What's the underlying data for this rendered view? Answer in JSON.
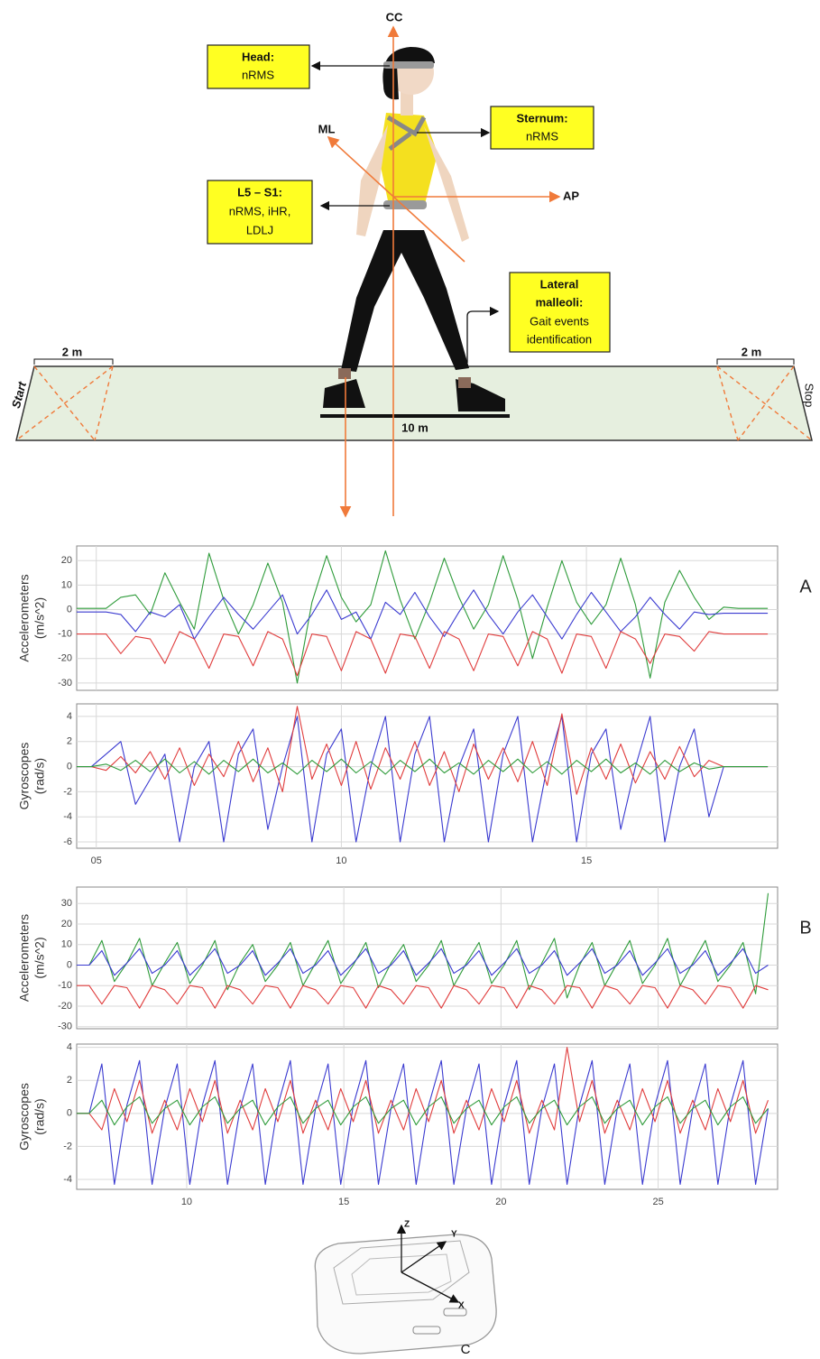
{
  "diagram": {
    "axes": {
      "cc": "CC",
      "ml": "ML",
      "ap": "AP"
    },
    "boxes": [
      {
        "title": [
          "Head:"
        ],
        "lines": [
          "nRMS"
        ]
      },
      {
        "title": [
          "Sternum:"
        ],
        "lines": [
          "nRMS"
        ]
      },
      {
        "title": [
          "L5 – S1:"
        ],
        "lines": [
          "nRMS, iHR,",
          "LDLJ"
        ]
      },
      {
        "title": [
          "Lateral",
          "malleoli:"
        ],
        "lines": [
          "Gait events",
          "identification"
        ]
      }
    ],
    "walkway": {
      "start": "Start",
      "stop": "Stop",
      "zone_left": "2 m",
      "zone_right": "2 m",
      "length": "10 m"
    },
    "device": {
      "z": "Z",
      "y": "Y",
      "x": "X",
      "label": "C"
    }
  },
  "chart_data": [
    {
      "type": "line",
      "panel": "A",
      "ylabel": [
        "Accelerometers",
        "(m/s^2)"
      ],
      "x": [
        4.6,
        4.9,
        5.2,
        5.5,
        5.8,
        6.1,
        6.4,
        6.7,
        7,
        7.3,
        7.6,
        7.9,
        8.2,
        8.5,
        8.8,
        9.1,
        9.4,
        9.7,
        10,
        10.3,
        10.6,
        10.9,
        11.2,
        11.5,
        11.8,
        12.1,
        12.4,
        12.7,
        13,
        13.3,
        13.6,
        13.9,
        14.2,
        14.5,
        14.8,
        15.1,
        15.4,
        15.7,
        16,
        16.3,
        16.6,
        16.9,
        17.2,
        17.5,
        17.8,
        18.1,
        18.4,
        18.7
      ],
      "xlim": [
        4.6,
        18.9
      ],
      "xticks": [
        5,
        10,
        15
      ],
      "x_tick_labels": false,
      "ylim": [
        -33,
        26
      ],
      "yticks": [
        -30,
        -20,
        -10,
        0,
        10,
        20
      ],
      "grid": true,
      "series": [
        {
          "color": "#2e9b3a",
          "values": [
            0.5,
            0.5,
            0.5,
            5,
            6,
            -2,
            15,
            3,
            -8,
            23,
            4,
            -10,
            2,
            19,
            3,
            -30,
            3,
            22,
            5,
            -5,
            2,
            24,
            4,
            -12,
            3,
            21,
            5,
            -8,
            2,
            22,
            4,
            -20,
            1,
            20,
            3,
            -6,
            2,
            21,
            2,
            -28,
            3,
            16,
            5,
            -4,
            1,
            0.5,
            0.5,
            0.5
          ]
        },
        {
          "color": "#3a3ad0",
          "values": [
            -1,
            -1,
            -1,
            -2,
            -9,
            -1,
            -3,
            2,
            -12,
            -3,
            5,
            -2,
            -8,
            -1,
            6,
            -10,
            -2,
            8,
            -4,
            -1,
            -12,
            3,
            -2,
            7,
            -3,
            -11,
            -1,
            8,
            -2,
            -10,
            -1,
            6,
            -3,
            -12,
            -2,
            7,
            -1,
            -9,
            -3,
            5,
            -2,
            -8,
            -1,
            -2,
            -1.5,
            -1.5,
            -1.5,
            -1.5
          ]
        },
        {
          "color": "#e03c3c",
          "values": [
            -10,
            -10,
            -10,
            -18,
            -11,
            -12,
            -22,
            -9,
            -12,
            -24,
            -10,
            -11,
            -23,
            -9,
            -12,
            -27,
            -10,
            -11,
            -25,
            -9,
            -12,
            -26,
            -10,
            -11,
            -24,
            -9,
            -12,
            -25,
            -10,
            -11,
            -23,
            -9,
            -12,
            -26,
            -10,
            -11,
            -24,
            -9,
            -12,
            -22,
            -10,
            -11,
            -17,
            -9,
            -10,
            -10,
            -10,
            -10
          ]
        }
      ]
    },
    {
      "type": "line",
      "ylabel": [
        "Gyroscopes",
        "(rad/s)"
      ],
      "x": [
        4.6,
        4.9,
        5.2,
        5.5,
        5.8,
        6.1,
        6.4,
        6.7,
        7,
        7.3,
        7.6,
        7.9,
        8.2,
        8.5,
        8.8,
        9.1,
        9.4,
        9.7,
        10,
        10.3,
        10.6,
        10.9,
        11.2,
        11.5,
        11.8,
        12.1,
        12.4,
        12.7,
        13,
        13.3,
        13.6,
        13.9,
        14.2,
        14.5,
        14.8,
        15.1,
        15.4,
        15.7,
        16,
        16.3,
        16.6,
        16.9,
        17.2,
        17.5,
        17.8,
        18.1,
        18.4,
        18.7
      ],
      "xlim": [
        4.6,
        18.9
      ],
      "xticks": [
        {
          "value": 5,
          "label": "05"
        },
        10,
        15
      ],
      "x_tick_labels": true,
      "ylim": [
        -6.5,
        5
      ],
      "yticks": [
        -6,
        -4,
        -2,
        0,
        2,
        4
      ],
      "grid": true,
      "series": [
        {
          "color": "#3a3ad0",
          "values": [
            0,
            0,
            1,
            2,
            -3,
            -1,
            1,
            -6,
            0,
            2,
            -6,
            1,
            3,
            -5,
            0,
            4,
            -6,
            1,
            3,
            -6,
            0,
            4,
            -6,
            1,
            4,
            -6,
            0,
            3,
            -6,
            1,
            4,
            -6,
            0,
            4,
            -6,
            1,
            3,
            -5,
            0,
            4,
            -6,
            0,
            3,
            -4,
            0,
            0,
            0,
            0
          ]
        },
        {
          "color": "#e03c3c",
          "values": [
            0,
            0,
            -0.3,
            0.8,
            -0.5,
            1.2,
            -1,
            1.5,
            -1.5,
            1,
            -0.8,
            2,
            -1.2,
            1.5,
            -2,
            4.8,
            -1,
            1.8,
            -1.5,
            2,
            -1.8,
            1.5,
            -1,
            2,
            -1.5,
            1.2,
            -2,
            1.8,
            -1,
            1.5,
            -1.2,
            2,
            -1.5,
            4.2,
            -2.2,
            1.5,
            -1,
            1.8,
            -1.3,
            1.2,
            -1,
            1.6,
            -0.8,
            0.5,
            0,
            0,
            0,
            0
          ]
        },
        {
          "color": "#2e9b3a",
          "values": [
            0,
            0,
            0.2,
            -0.3,
            0.5,
            -0.4,
            0.6,
            -0.5,
            0.4,
            -0.6,
            0.5,
            -0.4,
            0.6,
            -0.5,
            0.3,
            -0.6,
            0.5,
            -0.4,
            0.6,
            -0.5,
            0.4,
            -0.6,
            0.5,
            -0.4,
            0.6,
            -0.5,
            0.3,
            -0.6,
            0.5,
            -0.4,
            0.6,
            -0.5,
            0.4,
            -0.6,
            0.5,
            -0.4,
            0.6,
            -0.5,
            0.3,
            -0.6,
            0.5,
            -0.4,
            0.3,
            -0.2,
            0,
            0,
            0,
            0
          ]
        }
      ]
    },
    {
      "type": "line",
      "panel": "B",
      "ylabel": [
        "Accelerometers",
        "(m/s^2)"
      ],
      "x": [
        6.5,
        6.9,
        7.3,
        7.7,
        8.1,
        8.5,
        8.9,
        9.3,
        9.7,
        10.1,
        10.5,
        10.9,
        11.3,
        11.7,
        12.1,
        12.5,
        12.9,
        13.3,
        13.7,
        14.1,
        14.5,
        14.9,
        15.3,
        15.7,
        16.1,
        16.5,
        16.9,
        17.3,
        17.7,
        18.1,
        18.5,
        18.9,
        19.3,
        19.7,
        20.1,
        20.5,
        20.9,
        21.3,
        21.7,
        22.1,
        22.5,
        22.9,
        23.3,
        23.7,
        24.1,
        24.5,
        24.9,
        25.3,
        25.7,
        26.1,
        26.5,
        26.9,
        27.3,
        27.7,
        28.1,
        28.5
      ],
      "xlim": [
        6.5,
        28.8
      ],
      "xticks": [
        10,
        15,
        20,
        25
      ],
      "x_tick_labels": false,
      "ylim": [
        -31,
        38
      ],
      "yticks": [
        -30,
        -20,
        -10,
        0,
        10,
        20,
        30
      ],
      "grid": true,
      "series": [
        {
          "color": "#2e9b3a",
          "values": [
            0,
            0,
            12,
            -8,
            1,
            13,
            -10,
            1,
            11,
            -9,
            0,
            12,
            -12,
            1,
            10,
            -8,
            0,
            11,
            -10,
            1,
            12,
            -9,
            0,
            11,
            -11,
            1,
            10,
            -8,
            0,
            12,
            -10,
            1,
            11,
            -9,
            0,
            12,
            -12,
            1,
            13,
            -16,
            0,
            11,
            -10,
            1,
            12,
            -9,
            0,
            13,
            -10,
            1,
            12,
            -8,
            0,
            11,
            -14,
            35
          ]
        },
        {
          "color": "#3a3ad0",
          "values": [
            0,
            0,
            7,
            -5,
            1,
            8,
            -4,
            0,
            7,
            -5,
            1,
            8,
            -4,
            0,
            7,
            -5,
            1,
            8,
            -4,
            0,
            7,
            -5,
            1,
            8,
            -4,
            0,
            7,
            -5,
            1,
            8,
            -4,
            0,
            7,
            -5,
            1,
            8,
            -4,
            0,
            7,
            -5,
            1,
            8,
            -4,
            0,
            7,
            -5,
            1,
            8,
            -4,
            0,
            7,
            -5,
            1,
            8,
            -4,
            0
          ]
        },
        {
          "color": "#e03c3c",
          "values": [
            -10,
            -10,
            -19,
            -10,
            -11,
            -21,
            -10,
            -12,
            -19,
            -10,
            -11,
            -21,
            -10,
            -12,
            -19,
            -10,
            -11,
            -21,
            -10,
            -12,
            -19,
            -10,
            -11,
            -21,
            -10,
            -12,
            -19,
            -10,
            -11,
            -21,
            -10,
            -12,
            -19,
            -10,
            -11,
            -21,
            -10,
            -12,
            -19,
            -10,
            -11,
            -21,
            -10,
            -12,
            -19,
            -10,
            -11,
            -21,
            -10,
            -12,
            -19,
            -10,
            -11,
            -21,
            -10,
            -12
          ]
        }
      ]
    },
    {
      "type": "line",
      "ylabel": [
        "Gyroscopes",
        "(rad/s)"
      ],
      "x": [
        6.5,
        6.9,
        7.3,
        7.7,
        8.1,
        8.5,
        8.9,
        9.3,
        9.7,
        10.1,
        10.5,
        10.9,
        11.3,
        11.7,
        12.1,
        12.5,
        12.9,
        13.3,
        13.7,
        14.1,
        14.5,
        14.9,
        15.3,
        15.7,
        16.1,
        16.5,
        16.9,
        17.3,
        17.7,
        18.1,
        18.5,
        18.9,
        19.3,
        19.7,
        20.1,
        20.5,
        20.9,
        21.3,
        21.7,
        22.1,
        22.5,
        22.9,
        23.3,
        23.7,
        24.1,
        24.5,
        24.9,
        25.3,
        25.7,
        26.1,
        26.5,
        26.9,
        27.3,
        27.7,
        28.1,
        28.5
      ],
      "xlim": [
        6.5,
        28.8
      ],
      "xticks": [
        10,
        15,
        20,
        25
      ],
      "x_tick_labels": true,
      "ylim": [
        -4.6,
        4.2
      ],
      "yticks": [
        -4,
        -2,
        0,
        2,
        4
      ],
      "grid": true,
      "series": [
        {
          "color": "#3a3ad0",
          "values": [
            0,
            0,
            3,
            -4.3,
            0.5,
            3.2,
            -4.3,
            0.3,
            3,
            -4.3,
            0.5,
            3.2,
            -4.3,
            0.3,
            3,
            -4.3,
            0.5,
            3.2,
            -4.3,
            0.3,
            3,
            -4.3,
            0.5,
            3.2,
            -4.3,
            0.3,
            3,
            -4.3,
            0.5,
            3.2,
            -4.3,
            0.3,
            3,
            -4.3,
            0.5,
            3.2,
            -4.3,
            0.3,
            3,
            -4.3,
            0.5,
            3.2,
            -4.3,
            0.3,
            3,
            -4.3,
            0.5,
            3.2,
            -4.3,
            0.3,
            3,
            -4.3,
            0.5,
            3.2,
            -4.3,
            0.3
          ]
        },
        {
          "color": "#e03c3c",
          "values": [
            0,
            0,
            -1,
            1.5,
            -0.5,
            2,
            -1.2,
            0.8,
            -1,
            1.5,
            -0.5,
            2,
            -1.2,
            0.8,
            -1,
            1.5,
            -0.5,
            2,
            -1.2,
            0.8,
            -1,
            1.5,
            -0.5,
            2,
            -1.2,
            0.8,
            -1,
            1.5,
            -0.5,
            2,
            -1.2,
            0.8,
            -1,
            1.5,
            -0.5,
            2,
            -1.2,
            0.8,
            -1,
            4,
            -0.5,
            2,
            -1.2,
            0.8,
            -1,
            1.5,
            -0.5,
            2,
            -1.2,
            0.8,
            -1,
            1.5,
            -0.5,
            2,
            -1.2,
            0.8
          ]
        },
        {
          "color": "#2e9b3a",
          "values": [
            0,
            0,
            0.8,
            -0.7,
            0.4,
            1,
            -0.6,
            0.3,
            0.8,
            -0.7,
            0.4,
            1,
            -0.6,
            0.3,
            0.8,
            -0.7,
            0.4,
            1,
            -0.6,
            0.3,
            0.8,
            -0.7,
            0.4,
            1,
            -0.6,
            0.3,
            0.8,
            -0.7,
            0.4,
            1,
            -0.6,
            0.3,
            0.8,
            -0.7,
            0.4,
            1,
            -0.6,
            0.3,
            0.8,
            -0.7,
            0.4,
            1,
            -0.6,
            0.3,
            0.8,
            -0.7,
            0.4,
            1,
            -0.6,
            0.3,
            0.8,
            -0.7,
            0.4,
            1,
            -0.6,
            0.3
          ]
        }
      ]
    }
  ]
}
